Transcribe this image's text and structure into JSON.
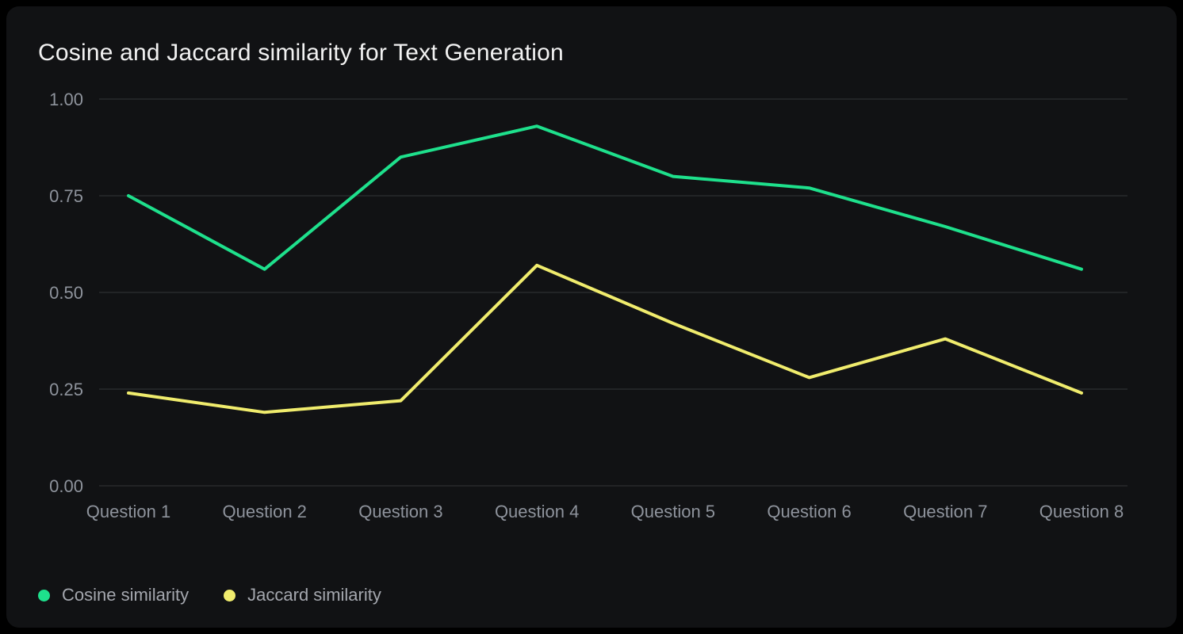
{
  "chart_data": {
    "type": "line",
    "title": "Cosine and Jaccard similarity for Text Generation",
    "categories": [
      "Question 1",
      "Question 2",
      "Question 3",
      "Question 4",
      "Question 5",
      "Question 6",
      "Question 7",
      "Question 8"
    ],
    "series": [
      {
        "name": "Cosine similarity",
        "color": "#1ee08c",
        "values": [
          0.75,
          0.56,
          0.85,
          0.93,
          0.8,
          0.77,
          0.67,
          0.56
        ]
      },
      {
        "name": "Jaccard similarity",
        "color": "#f0ec6d",
        "values": [
          0.24,
          0.19,
          0.22,
          0.57,
          0.42,
          0.28,
          0.38,
          0.24
        ]
      }
    ],
    "y_axis": {
      "min": 0,
      "max": 1,
      "ticks": [
        "1.00",
        "0.75",
        "0.50",
        "0.25",
        "0.00"
      ]
    },
    "grid": true,
    "legend_position": "bottom",
    "theme": {
      "background": "#000000",
      "card_background": "#111214",
      "title_color": "#f2f2f2",
      "tick_color": "#8e939c",
      "grid_color": "#333539",
      "legend_text_color": "#a4a7ae"
    }
  }
}
